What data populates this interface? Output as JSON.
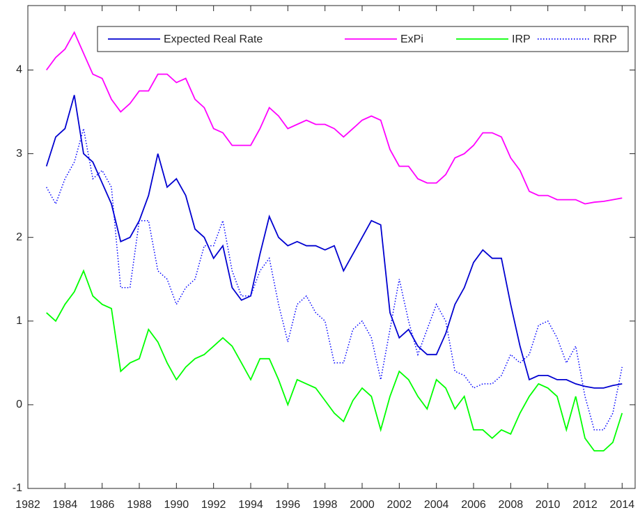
{
  "chart_data": {
    "type": "line",
    "x": [
      1983,
      1983.5,
      1984,
      1984.5,
      1985,
      1985.5,
      1986,
      1986.5,
      1987,
      1987.5,
      1988,
      1988.5,
      1989,
      1989.5,
      1990,
      1990.5,
      1991,
      1991.5,
      1992,
      1992.5,
      1993,
      1993.5,
      1994,
      1994.5,
      1995,
      1995.5,
      1996,
      1996.5,
      1997,
      1997.5,
      1998,
      1998.5,
      1999,
      1999.5,
      2000,
      2000.5,
      2001,
      2001.5,
      2002,
      2002.5,
      2003,
      2003.5,
      2004,
      2004.5,
      2005,
      2005.5,
      2006,
      2006.5,
      2007,
      2007.5,
      2008,
      2008.5,
      2009,
      2009.5,
      2010,
      2010.5,
      2011,
      2011.5,
      2012,
      2012.5,
      2013,
      2013.5,
      2014
    ],
    "series": [
      {
        "name": "Expected Real Rate",
        "color": "#0000d0",
        "style": "solid",
        "values": [
          2.85,
          3.2,
          3.3,
          3.7,
          3.0,
          2.9,
          2.65,
          2.4,
          1.95,
          2.0,
          2.2,
          2.5,
          3.0,
          2.6,
          2.7,
          2.5,
          2.1,
          2.0,
          1.75,
          1.9,
          1.4,
          1.25,
          1.3,
          1.8,
          2.25,
          2.0,
          1.9,
          1.95,
          1.9,
          1.9,
          1.85,
          1.9,
          1.6,
          1.8,
          2.0,
          2.2,
          2.15,
          1.1,
          0.8,
          0.9,
          0.7,
          0.6,
          0.6,
          0.85,
          1.2,
          1.4,
          1.7,
          1.85,
          1.75,
          1.75,
          1.2,
          0.7,
          0.3,
          0.35,
          0.35,
          0.3,
          0.3,
          0.25,
          0.22,
          0.2,
          0.2,
          0.23,
          0.25
        ]
      },
      {
        "name": "ExPi",
        "color": "#ff00ff",
        "style": "solid",
        "values": [
          4.0,
          4.15,
          4.25,
          4.45,
          4.2,
          3.95,
          3.9,
          3.65,
          3.5,
          3.6,
          3.75,
          3.75,
          3.95,
          3.95,
          3.85,
          3.9,
          3.65,
          3.55,
          3.3,
          3.25,
          3.1,
          3.1,
          3.1,
          3.3,
          3.55,
          3.45,
          3.3,
          3.35,
          3.4,
          3.35,
          3.35,
          3.3,
          3.2,
          3.3,
          3.4,
          3.45,
          3.4,
          3.05,
          2.85,
          2.85,
          2.7,
          2.65,
          2.65,
          2.75,
          2.95,
          3.0,
          3.1,
          3.25,
          3.25,
          3.2,
          2.95,
          2.8,
          2.55,
          2.5,
          2.5,
          2.45,
          2.45,
          2.45,
          2.4,
          2.42,
          2.43,
          2.45,
          2.47
        ]
      },
      {
        "name": "IRP",
        "color": "#00ff00",
        "style": "solid",
        "values": [
          1.1,
          1.0,
          1.2,
          1.35,
          1.6,
          1.3,
          1.2,
          1.15,
          0.4,
          0.5,
          0.55,
          0.9,
          0.75,
          0.5,
          0.3,
          0.45,
          0.55,
          0.6,
          0.7,
          0.8,
          0.7,
          0.5,
          0.3,
          0.55,
          0.55,
          0.3,
          0.0,
          0.3,
          0.25,
          0.2,
          0.05,
          -0.1,
          -0.2,
          0.05,
          0.2,
          0.1,
          -0.3,
          0.1,
          0.4,
          0.3,
          0.1,
          -0.05,
          0.3,
          0.2,
          -0.05,
          0.1,
          -0.3,
          -0.3,
          -0.4,
          -0.3,
          -0.35,
          -0.1,
          0.1,
          0.25,
          0.2,
          0.1,
          -0.3,
          0.1,
          -0.4,
          -0.55,
          -0.55,
          -0.45,
          -0.1
        ]
      },
      {
        "name": "RRP",
        "color": "#0000ff",
        "style": "dotted",
        "values": [
          2.6,
          2.4,
          2.7,
          2.9,
          3.3,
          2.7,
          2.8,
          2.6,
          1.4,
          1.4,
          2.2,
          2.2,
          1.6,
          1.5,
          1.2,
          1.4,
          1.5,
          1.9,
          1.9,
          2.2,
          1.6,
          1.3,
          1.3,
          1.6,
          1.75,
          1.2,
          0.75,
          1.2,
          1.3,
          1.1,
          1.0,
          0.5,
          0.5,
          0.9,
          1.0,
          0.8,
          0.3,
          0.9,
          1.5,
          1.0,
          0.6,
          0.9,
          1.2,
          1.0,
          0.4,
          0.35,
          0.2,
          0.25,
          0.25,
          0.35,
          0.6,
          0.5,
          0.6,
          0.95,
          1.0,
          0.8,
          0.5,
          0.7,
          0.1,
          -0.3,
          -0.3,
          -0.1,
          0.45
        ]
      }
    ],
    "xlim": [
      1982,
      2014.7
    ],
    "ylim": [
      -1,
      4.77
    ],
    "xticks": [
      1982,
      1984,
      1986,
      1988,
      1990,
      1992,
      1994,
      1996,
      1998,
      2000,
      2002,
      2004,
      2006,
      2008,
      2010,
      2012,
      2014
    ],
    "yticks": [
      -1,
      0,
      1,
      2,
      3,
      4
    ],
    "legend": "north"
  }
}
